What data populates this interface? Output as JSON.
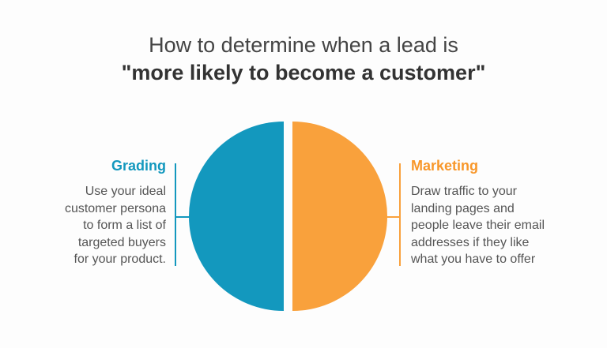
{
  "title": {
    "line1": "How to determine when a lead is",
    "line2": "\"more likely to become a customer\""
  },
  "colors": {
    "grading": "#1398be",
    "marketing": "#f9a13c"
  },
  "grading": {
    "heading": "Grading",
    "lines": [
      "Use your ideal",
      "customer persona",
      "to form a list of",
      "targeted buyers",
      "for your product."
    ]
  },
  "marketing": {
    "heading": "Marketing",
    "lines": [
      "Draw traffic to your",
      "landing pages and",
      "people leave their email",
      "addresses if they like",
      "what you have to offer"
    ]
  }
}
